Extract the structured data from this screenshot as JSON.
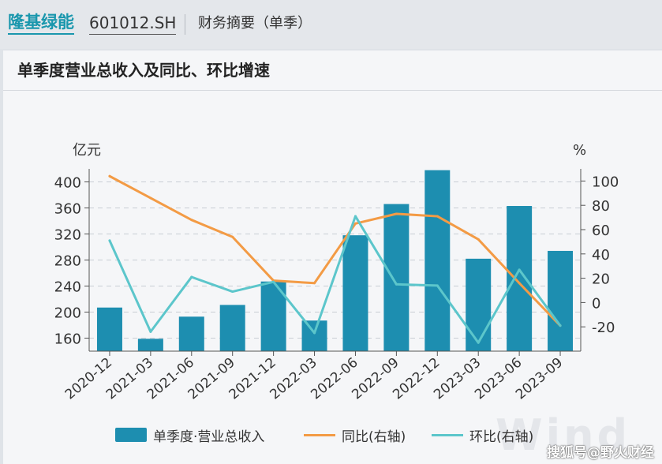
{
  "header": {
    "company": "隆基绿能",
    "code": "601012.SH",
    "section": "财务摘要（单季）"
  },
  "panel": {
    "title": "单季度营业总收入及同比、环比增速"
  },
  "watermark": "搜狐号@野火财经",
  "brand_mark": "Wind",
  "colors": {
    "bar": "#1d8eb0",
    "yoy": "#f39b45",
    "qoq": "#5cc6cb"
  },
  "chart_data": {
    "type": "bar",
    "categories": [
      "2020-12",
      "2021-03",
      "2021-06",
      "2021-09",
      "2021-12",
      "2022-03",
      "2022-06",
      "2022-09",
      "2022-12",
      "2023-03",
      "2023-06",
      "2023-09"
    ],
    "left_axis": {
      "label": "亿元",
      "ylim": [
        140,
        420
      ],
      "ticks": [
        160,
        200,
        240,
        280,
        320,
        360,
        400
      ]
    },
    "right_axis": {
      "label": "%",
      "ylim": [
        -40,
        110
      ],
      "ticks": [
        -20,
        0,
        20,
        40,
        60,
        80,
        100
      ]
    },
    "series": [
      {
        "name": "单季度·营业总收入",
        "type": "bar",
        "axis": "left",
        "values": [
          207,
          159,
          193,
          211,
          247,
          187,
          318,
          366,
          418,
          282,
          363,
          294
        ]
      },
      {
        "name": "同比(右轴)",
        "type": "line",
        "axis": "right",
        "values": [
          104,
          86,
          68,
          54,
          18,
          16,
          65,
          73,
          71,
          52,
          16,
          -19
        ]
      },
      {
        "name": "环比(右轴)",
        "type": "line",
        "axis": "right",
        "values": [
          51,
          -24,
          21,
          9,
          17,
          -25,
          71,
          15,
          14,
          -33,
          27,
          -19
        ]
      }
    ],
    "grid": true,
    "legend": "bottom"
  }
}
